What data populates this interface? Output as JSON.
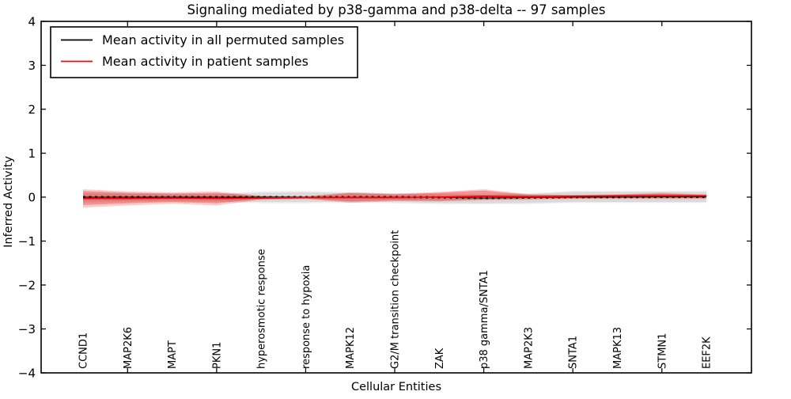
{
  "chart_data": {
    "type": "line",
    "title": "Signaling mediated by p38-gamma and p38-delta -- 97 samples",
    "xlabel": "Cellular Entities",
    "ylabel": "Inferred Activity",
    "ylim": [
      -4,
      4
    ],
    "ytick_labels": [
      "4",
      "3",
      "2",
      "1",
      "0",
      "−1",
      "−2",
      "−3",
      "−4"
    ],
    "ytick_values": [
      4,
      3,
      2,
      1,
      0,
      -1,
      -2,
      -3,
      -4
    ],
    "xtick_mark_indices": [
      1,
      3,
      5,
      7,
      9,
      11,
      13
    ],
    "grid": false,
    "legend_position": "upper left",
    "background_color": "#ffffff",
    "frame_color": "#000000",
    "categories": [
      "CCND1",
      "MAP2K6",
      "MAPT",
      "PKN1",
      "hyperosmotic response",
      "response to hypoxia",
      "MAPK12",
      "G2/M transition checkpoint",
      "ZAK",
      "p38 gamma/SNTA1",
      "MAP2K3",
      "SNTA1",
      "MAPK13",
      "STMN1",
      "EEF2K"
    ],
    "series": [
      {
        "name": "Mean activity in all permuted samples",
        "color": "#000000",
        "style": "dashed",
        "values": [
          0,
          0,
          0,
          0,
          0,
          0,
          0,
          0,
          -0.005,
          -0.02,
          -0.01,
          0,
          0,
          0.005,
          0.005
        ]
      },
      {
        "name": "Mean activity in patient samples",
        "color": "#ff0000",
        "style": "solid",
        "values": [
          -0.03,
          -0.03,
          -0.02,
          -0.03,
          -0.02,
          -0.01,
          -0.01,
          -0.01,
          0.0,
          0.02,
          0.01,
          0.02,
          0.03,
          0.03,
          0.03
        ]
      }
    ],
    "bands": [
      {
        "name": "permuted-band-outer",
        "color": "#000000",
        "opacity": 0.07,
        "upper": [
          0.1,
          0.09,
          0.08,
          0.08,
          0.13,
          0.14,
          0.11,
          0.09,
          0.08,
          0.07,
          0.09,
          0.14,
          0.14,
          0.14,
          0.14
        ],
        "lower": [
          -0.13,
          -0.11,
          -0.1,
          -0.11,
          -0.14,
          -0.14,
          -0.13,
          -0.14,
          -0.16,
          -0.16,
          -0.16,
          -0.13,
          -0.13,
          -0.13,
          -0.13
        ]
      },
      {
        "name": "permuted-band-inner",
        "color": "#000000",
        "opacity": 0.08,
        "upper": [
          0.08,
          0.07,
          0.06,
          0.06,
          0.1,
          0.11,
          0.09,
          0.07,
          0.06,
          0.05,
          0.07,
          0.12,
          0.12,
          0.12,
          0.12
        ],
        "lower": [
          -0.1,
          -0.09,
          -0.08,
          -0.09,
          -0.11,
          -0.11,
          -0.1,
          -0.11,
          -0.13,
          -0.14,
          -0.13,
          -0.11,
          -0.11,
          -0.11,
          -0.11
        ]
      },
      {
        "name": "patient-band-outer",
        "color": "#e60000",
        "opacity": 0.2,
        "upper": [
          0.18,
          0.13,
          0.11,
          0.13,
          0.03,
          0.02,
          0.11,
          0.08,
          0.12,
          0.18,
          0.07,
          0.05,
          0.06,
          0.1,
          0.06
        ],
        "lower": [
          -0.24,
          -0.19,
          -0.15,
          -0.19,
          -0.06,
          -0.04,
          -0.13,
          -0.09,
          -0.1,
          -0.07,
          -0.06,
          -0.04,
          -0.04,
          -0.04,
          -0.04
        ]
      },
      {
        "name": "patient-band-inner",
        "color": "#e60000",
        "opacity": 0.28,
        "upper": [
          0.14,
          0.1,
          0.08,
          0.1,
          0.02,
          0.01,
          0.09,
          0.06,
          0.1,
          0.15,
          0.05,
          0.04,
          0.05,
          0.08,
          0.045
        ],
        "lower": [
          -0.18,
          -0.14,
          -0.11,
          -0.14,
          -0.04,
          -0.03,
          -0.1,
          -0.07,
          -0.08,
          -0.05,
          -0.04,
          -0.03,
          -0.02,
          -0.02,
          -0.02
        ]
      }
    ]
  }
}
